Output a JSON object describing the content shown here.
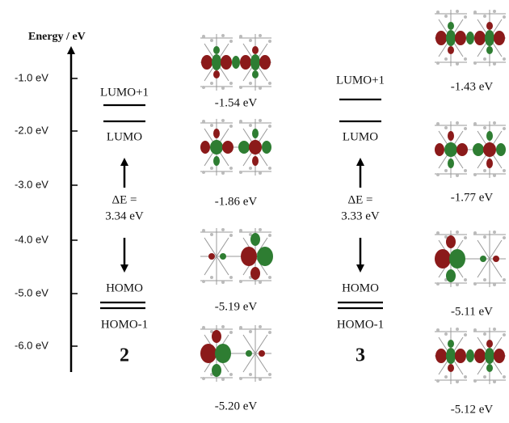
{
  "axis": {
    "title": "Energy / eV",
    "ticks": [
      "-1.0 eV",
      "-2.0 eV",
      "-3.0 eV",
      "-4.0 eV",
      "-5.0 eV",
      "-6.0 eV"
    ]
  },
  "compounds": [
    {
      "label": "2",
      "levels": [
        "LUMO+1",
        "LUMO",
        "HOMO",
        "HOMO-1"
      ],
      "gap": [
        "ΔE =",
        "3.34 eV"
      ],
      "orbital_energies": [
        "-1.54 eV",
        "-1.86 eV",
        "-5.19 eV",
        "-5.20 eV"
      ]
    },
    {
      "label": "3",
      "levels": [
        "LUMO+1",
        "LUMO",
        "HOMO",
        "HOMO-1"
      ],
      "gap": [
        "ΔE =",
        "3.33 eV"
      ],
      "orbital_energies": [
        "-1.43 eV",
        "-1.77 eV",
        "-5.11 eV",
        "-5.12 eV"
      ]
    }
  ]
}
